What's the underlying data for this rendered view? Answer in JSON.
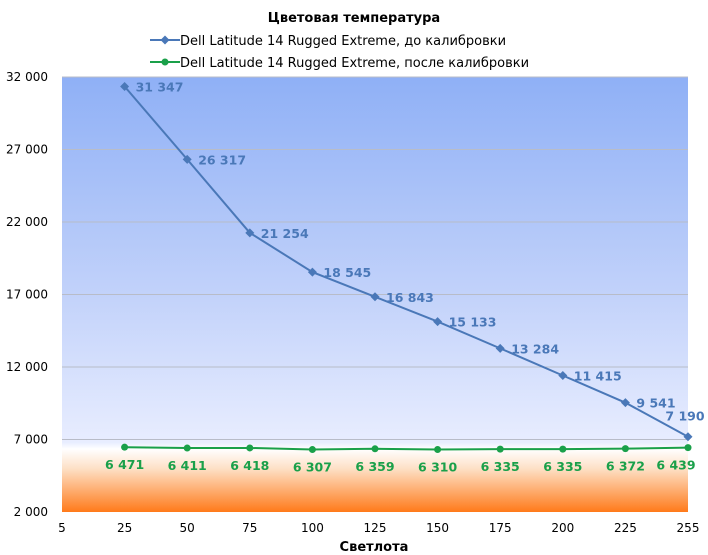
{
  "chart_data": {
    "type": "line",
    "title": "Цветовая температура",
    "xlabel": "Светлота",
    "ylabel": "",
    "x_ticks": [
      "5",
      "25",
      "50",
      "75",
      "100",
      "125",
      "150",
      "175",
      "200",
      "225",
      "255"
    ],
    "y_ticks": [
      "2 000",
      "7 000",
      "12 000",
      "17 000",
      "22 000",
      "27 000",
      "32 000"
    ],
    "ylim": [
      2000,
      32000
    ],
    "grid": true,
    "legend_position": "top",
    "x": [
      25,
      50,
      75,
      100,
      125,
      150,
      175,
      200,
      225,
      255
    ],
    "series": [
      {
        "name": "Dell  Latitude 14 Rugged Extreme, до калибровки",
        "color": "#4a78b8",
        "marker": "diamond",
        "values": [
          31347,
          26317,
          21254,
          18545,
          16843,
          15133,
          13284,
          11415,
          9541,
          7190
        ],
        "labels": [
          "31 347",
          "26 317",
          "21 254",
          "18 545",
          "16 843",
          "15 133",
          "13 284",
          "11 415",
          "9 541",
          "7 190"
        ]
      },
      {
        "name": "Dell  Latitude 14 Rugged Extreme, после калибровки",
        "color": "#1aa04a",
        "marker": "circle",
        "values": [
          6471,
          6411,
          6418,
          6307,
          6359,
          6310,
          6335,
          6335,
          6372,
          6439
        ],
        "labels": [
          "6 471",
          "6 411",
          "6 418",
          "6 307",
          "6 359",
          "6 310",
          "6 335",
          "6 335",
          "6 372",
          "6 439"
        ]
      }
    ]
  }
}
